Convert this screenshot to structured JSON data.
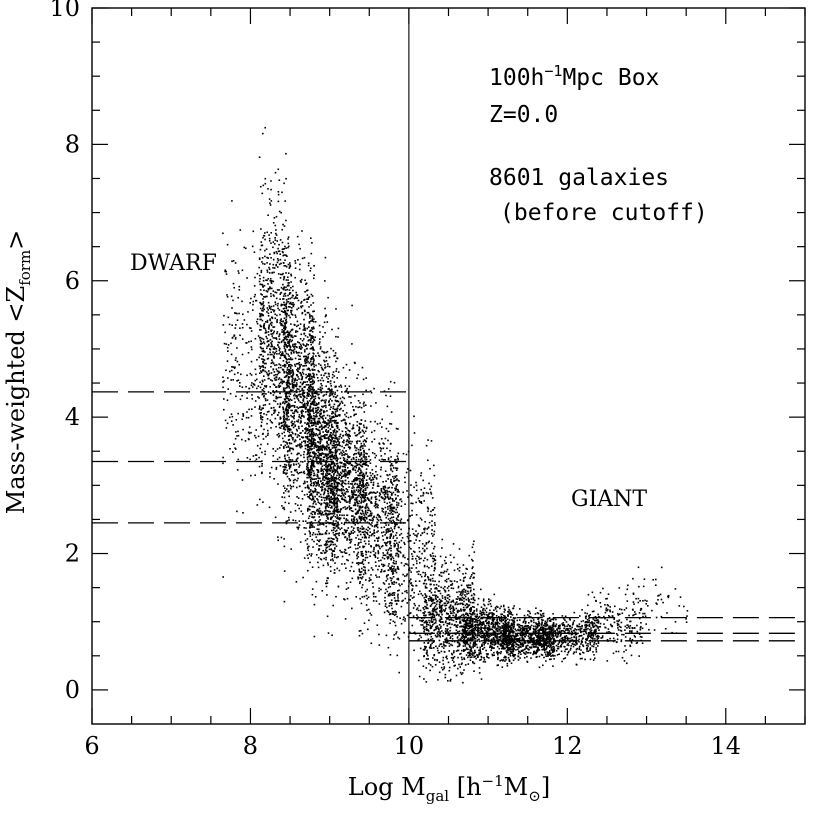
{
  "chart_data": {
    "type": "scatter",
    "title": "",
    "xlabel": {
      "prefix": "Log M",
      "sub": "gal",
      "bracket_open": " [h",
      "sup": "−1",
      "unit": "M",
      "unit_sub": "⊙",
      "bracket_close": "]"
    },
    "ylabel": {
      "prefix": "Mass-weighted <Z",
      "sub": "form",
      "suffix": ">"
    },
    "xlim": [
      6,
      15
    ],
    "ylim": [
      -0.5,
      10
    ],
    "x_ticks": [
      6,
      8,
      10,
      12,
      14
    ],
    "y_ticks": [
      0,
      2,
      4,
      6,
      8,
      10
    ],
    "x_tick_labels": [
      "6",
      "8",
      "10",
      "12",
      "14"
    ],
    "y_tick_labels": [
      "0",
      "2",
      "4",
      "6",
      "8",
      "10"
    ],
    "grid": false,
    "annotations": {
      "box_prefix": "100h",
      "box_sup": "−1",
      "box_suffix": "Mpc Box",
      "redshift": "Z=0.0",
      "count": "8601 galaxies",
      "note": "(before cutoff)"
    },
    "region_labels": {
      "dwarf": "DWARF",
      "giant": "GIANT"
    },
    "divider_x": 10,
    "dwarf_dashed_levels": [
      4.37,
      3.35,
      2.45
    ],
    "giant_dashed_levels": [
      1.06,
      0.83,
      0.72
    ],
    "point_count": 8601,
    "point_color": "#000000",
    "density_model": [
      {
        "x_center": 7.9,
        "y_mean": 4.8,
        "y_sd": 0.9,
        "share": 0.03
      },
      {
        "x_center": 8.3,
        "y_mean": 5.1,
        "y_sd": 1.0,
        "share": 0.09
      },
      {
        "x_center": 8.6,
        "y_mean": 4.3,
        "y_sd": 0.9,
        "share": 0.12
      },
      {
        "x_center": 8.9,
        "y_mean": 3.5,
        "y_sd": 0.8,
        "share": 0.14
      },
      {
        "x_center": 9.2,
        "y_mean": 3.0,
        "y_sd": 0.7,
        "share": 0.12
      },
      {
        "x_center": 9.6,
        "y_mean": 2.6,
        "y_sd": 0.7,
        "share": 0.08
      },
      {
        "x_center": 10.0,
        "y_mean": 1.9,
        "y_sd": 0.7,
        "share": 0.06
      },
      {
        "x_center": 10.5,
        "y_mean": 1.1,
        "y_sd": 0.4,
        "share": 0.09
      },
      {
        "x_center": 11.0,
        "y_mean": 0.85,
        "y_sd": 0.2,
        "share": 0.1
      },
      {
        "x_center": 11.5,
        "y_mean": 0.78,
        "y_sd": 0.15,
        "share": 0.08
      },
      {
        "x_center": 12.0,
        "y_mean": 0.8,
        "y_sd": 0.15,
        "share": 0.06
      },
      {
        "x_center": 12.6,
        "y_mean": 1.0,
        "y_sd": 0.22,
        "share": 0.025
      },
      {
        "x_center": 13.2,
        "y_mean": 1.3,
        "y_sd": 0.3,
        "share": 0.005
      }
    ]
  }
}
